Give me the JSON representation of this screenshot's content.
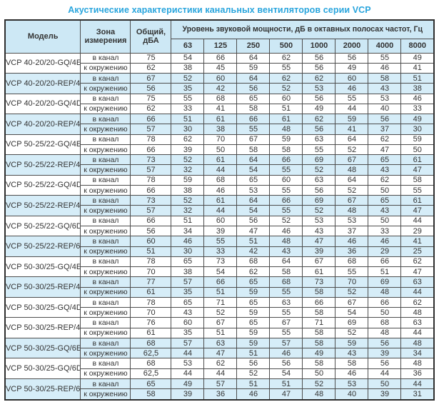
{
  "title": "Акустические характеристики канальных вентиляторов  серии VCP",
  "colors": {
    "accent_blue": "#29a5dd",
    "header_background": "#cde8f5",
    "row_highlight_background": "#d6edf8",
    "border": "#4d4d4d",
    "text": "#333333"
  },
  "table": {
    "headers": {
      "model": "Модель",
      "zone": "Зона измерения",
      "total": "Общий, дБА",
      "spl": "Уровень звуковой мощности, дБ в октавных полосах частот, Гц",
      "frequencies": [
        "63",
        "125",
        "250",
        "500",
        "1000",
        "2000",
        "4000",
        "8000"
      ]
    },
    "zone_labels": [
      "в канал",
      "к окружению"
    ],
    "rows": [
      {
        "model": "VCP 40-20/20-GQ/4E",
        "highlight": false,
        "in_duct": {
          "total": "75",
          "bands": [
            54,
            66,
            64,
            62,
            56,
            56,
            55,
            49
          ]
        },
        "to_surroundings": {
          "total": "62",
          "bands": [
            38,
            45,
            59,
            55,
            56,
            49,
            46,
            41
          ]
        }
      },
      {
        "model": "VCP 40-20/20-REP/4E",
        "highlight": true,
        "in_duct": {
          "total": "67",
          "bands": [
            52,
            60,
            64,
            62,
            62,
            60,
            58,
            51
          ]
        },
        "to_surroundings": {
          "total": "56",
          "bands": [
            35,
            42,
            56,
            52,
            53,
            46,
            43,
            38
          ]
        }
      },
      {
        "model": "VCP 40-20/20-GQ/4D",
        "highlight": false,
        "in_duct": {
          "total": "75",
          "bands": [
            55,
            68,
            65,
            60,
            56,
            55,
            53,
            46
          ]
        },
        "to_surroundings": {
          "total": "62",
          "bands": [
            33,
            41,
            58,
            51,
            49,
            44,
            40,
            33
          ]
        }
      },
      {
        "model": "VCP 40-20/20-REP/4D",
        "highlight": true,
        "in_duct": {
          "total": "66",
          "bands": [
            51,
            61,
            66,
            61,
            62,
            59,
            56,
            49
          ]
        },
        "to_surroundings": {
          "total": "57",
          "bands": [
            30,
            38,
            55,
            48,
            56,
            41,
            37,
            30
          ]
        }
      },
      {
        "model": "VCP 50-25/22-GQ/4E",
        "highlight": false,
        "in_duct": {
          "total": "78",
          "bands": [
            62,
            70,
            67,
            59,
            63,
            64,
            62,
            59
          ]
        },
        "to_surroundings": {
          "total": "66",
          "bands": [
            39,
            50,
            58,
            58,
            55,
            52,
            47,
            50
          ]
        }
      },
      {
        "model": "VCP 50-25/22-REP/4E",
        "highlight": true,
        "in_duct": {
          "total": "73",
          "bands": [
            52,
            61,
            64,
            66,
            69,
            67,
            65,
            61
          ]
        },
        "to_surroundings": {
          "total": "57",
          "bands": [
            32,
            44,
            54,
            55,
            52,
            48,
            43,
            47
          ]
        }
      },
      {
        "model": "VCP 50-25/22-GQ/4D",
        "highlight": false,
        "in_duct": {
          "total": "78",
          "bands": [
            59,
            68,
            65,
            60,
            63,
            64,
            62,
            58
          ]
        },
        "to_surroundings": {
          "total": "66",
          "bands": [
            38,
            46,
            53,
            55,
            56,
            52,
            50,
            55
          ]
        }
      },
      {
        "model": "VCP 50-25/22-REP/4D",
        "highlight": true,
        "in_duct": {
          "total": "73",
          "bands": [
            52,
            61,
            64,
            66,
            69,
            67,
            65,
            61
          ]
        },
        "to_surroundings": {
          "total": "57",
          "bands": [
            32,
            44,
            54,
            55,
            52,
            48,
            43,
            47
          ]
        }
      },
      {
        "model": "VCP 50-25/22-GQ/6D",
        "highlight": false,
        "in_duct": {
          "total": "66",
          "bands": [
            51,
            60,
            56,
            52,
            53,
            53,
            50,
            44
          ]
        },
        "to_surroundings": {
          "total": "56",
          "bands": [
            34,
            39,
            47,
            46,
            43,
            37,
            33,
            29
          ]
        }
      },
      {
        "model": "VCP 50-25/22-REP/6D",
        "highlight": true,
        "in_duct": {
          "total": "60",
          "bands": [
            46,
            55,
            51,
            48,
            47,
            46,
            46,
            41
          ]
        },
        "to_surroundings": {
          "total": "51",
          "bands": [
            30,
            33,
            42,
            43,
            39,
            36,
            29,
            25
          ]
        }
      },
      {
        "model": "VCP 50-30/25-GQ/4E",
        "highlight": false,
        "in_duct": {
          "total": "78",
          "bands": [
            65,
            73,
            68,
            64,
            67,
            68,
            66,
            62
          ]
        },
        "to_surroundings": {
          "total": "70",
          "bands": [
            38,
            54,
            62,
            58,
            61,
            55,
            51,
            47
          ]
        }
      },
      {
        "model": "VCP 50-30/25-REP/4E",
        "highlight": true,
        "in_duct": {
          "total": "77",
          "bands": [
            57,
            66,
            65,
            68,
            73,
            70,
            69,
            63
          ]
        },
        "to_surroundings": {
          "total": "61",
          "bands": [
            35,
            51,
            59,
            55,
            58,
            52,
            48,
            44
          ]
        }
      },
      {
        "model": "VCP 50-30/25-GQ/4D",
        "highlight": false,
        "in_duct": {
          "total": "78",
          "bands": [
            65,
            71,
            65,
            63,
            66,
            67,
            66,
            62
          ]
        },
        "to_surroundings": {
          "total": "70",
          "bands": [
            43,
            52,
            59,
            55,
            58,
            54,
            50,
            48
          ]
        }
      },
      {
        "model": "VCP 50-30/25-REP/4D",
        "highlight": false,
        "in_duct": {
          "total": "76",
          "bands": [
            60,
            67,
            65,
            67,
            71,
            69,
            68,
            63
          ]
        },
        "to_surroundings": {
          "total": "61",
          "bands": [
            35,
            51,
            59,
            55,
            58,
            52,
            48,
            44
          ]
        }
      },
      {
        "model": "VCP 50-30/25-GQ/6E",
        "highlight": true,
        "in_duct": {
          "total": "68",
          "bands": [
            57,
            63,
            59,
            57,
            58,
            59,
            56,
            48
          ]
        },
        "to_surroundings": {
          "total": "62,5",
          "bands": [
            44,
            47,
            51,
            46,
            49,
            43,
            39,
            34
          ]
        }
      },
      {
        "model": "VCP 50-30/25-GQ/6D",
        "highlight": false,
        "in_duct": {
          "total": "68",
          "bands": [
            53,
            62,
            56,
            56,
            58,
            58,
            56,
            48
          ]
        },
        "to_surroundings": {
          "total": "62,5",
          "bands": [
            44,
            44,
            52,
            54,
            50,
            46,
            44,
            36
          ]
        }
      },
      {
        "model": "VCP 50-30/25-REP/6D",
        "highlight": true,
        "in_duct": {
          "total": "65",
          "bands": [
            49,
            57,
            51,
            51,
            52,
            53,
            50,
            44
          ]
        },
        "to_surroundings": {
          "total": "58",
          "bands": [
            39,
            36,
            46,
            47,
            48,
            40,
            39,
            31
          ]
        }
      }
    ]
  }
}
